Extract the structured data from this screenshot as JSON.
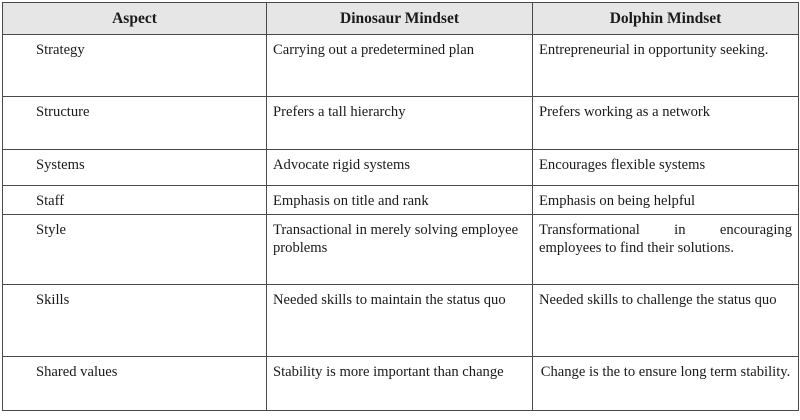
{
  "table": {
    "headers": [
      "Aspect",
      "Dinosaur Mindset",
      "Dolphin Mindset"
    ],
    "rows": [
      {
        "aspect": "Strategy",
        "dinosaur": "Carrying out a predetermined plan",
        "dolphin": "Entrepreneurial in opportunity seeking."
      },
      {
        "aspect": "Structure",
        "dinosaur": "Prefers a tall hierarchy",
        "dolphin": "Prefers working as a network"
      },
      {
        "aspect": "Systems",
        "dinosaur": "Advocate rigid systems",
        "dolphin": "Encourages flexible systems"
      },
      {
        "aspect": "Staff",
        "dinosaur": "Emphasis on title and rank",
        "dolphin": "Emphasis on being helpful"
      },
      {
        "aspect": "Style",
        "dinosaur": "Transactional in merely solving employee problems",
        "dolphin": "Transformational in encouraging employees to find their solutions."
      },
      {
        "aspect": "Skills",
        "dinosaur": "Needed skills to maintain the status quo",
        "dolphin": "Needed skills to challenge the status quo"
      },
      {
        "aspect": "Shared values",
        "dinosaur": "Stability is more important than change",
        "dolphin": "Change is the  to ensure long term stability."
      }
    ]
  }
}
